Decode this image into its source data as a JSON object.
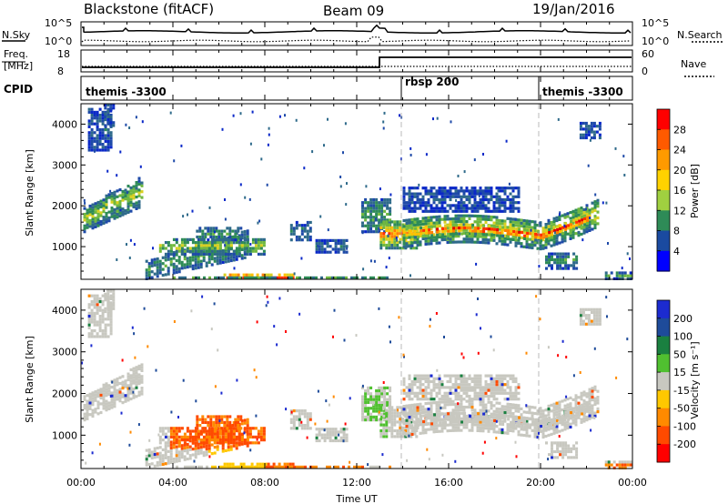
{
  "header": {
    "title": "Blackstone (fitACF)",
    "beam": "Beam 09",
    "date": "19/Jan/2016"
  },
  "panels": {
    "nsky": {
      "left_label": "N.Sky",
      "left_ticks": [
        "10^5",
        "10^0"
      ],
      "right_label": "N.Search",
      "right_ticks": [
        "10^5",
        "10^0"
      ]
    },
    "freq": {
      "left_label_1": "Freq.",
      "left_label_2": "[MHz]",
      "left_ticks": [
        "18",
        "8"
      ],
      "right_label": "Nave",
      "right_ticks": [
        "60",
        "0"
      ]
    },
    "cpid": {
      "left_label": "CPID",
      "segments": [
        "themis -3300",
        "rbsp 200",
        "themis -3300"
      ]
    }
  },
  "chart_data": [
    {
      "type": "heatmap",
      "name": "power",
      "ylabel": "Slant Range [km]",
      "yticks": [
        "4000",
        "3000",
        "2000",
        "1000"
      ],
      "ylim": [
        200,
        4500
      ],
      "colorbar_label": "Power [dB]",
      "colorbar_ticks": [
        "28",
        "24",
        "20",
        "16",
        "12",
        "8",
        "4"
      ],
      "colorbar_colors": [
        "#ff0000",
        "#ff5a00",
        "#ff9a00",
        "#ffd200",
        "#a0d040",
        "#2e8b57",
        "#1a4aa0",
        "#0000ff"
      ],
      "clim": [
        0,
        30
      ]
    },
    {
      "type": "heatmap",
      "name": "velocity",
      "ylabel": "Slant Range [km]",
      "yticks": [
        "4000",
        "3000",
        "2000",
        "1000"
      ],
      "ylim": [
        200,
        4500
      ],
      "colorbar_label": "Velocity [m s⁻¹]",
      "colorbar_ticks": [
        "200",
        "100",
        "50",
        "15",
        "-15",
        "-50",
        "-100",
        "-200"
      ],
      "colorbar_colors": [
        "#1c2bd0",
        "#1e4b9a",
        "#1a8040",
        "#50c030",
        "#c8c8c0",
        "#ffc800",
        "#ff8a00",
        "#ff4a00",
        "#ff0000"
      ],
      "clim": [
        -250,
        250
      ]
    }
  ],
  "xaxis": {
    "label": "Time UT",
    "ticks": [
      "00:00",
      "04:00",
      "08:00",
      "12:00",
      "16:00",
      "20:00",
      "00:00"
    ]
  }
}
